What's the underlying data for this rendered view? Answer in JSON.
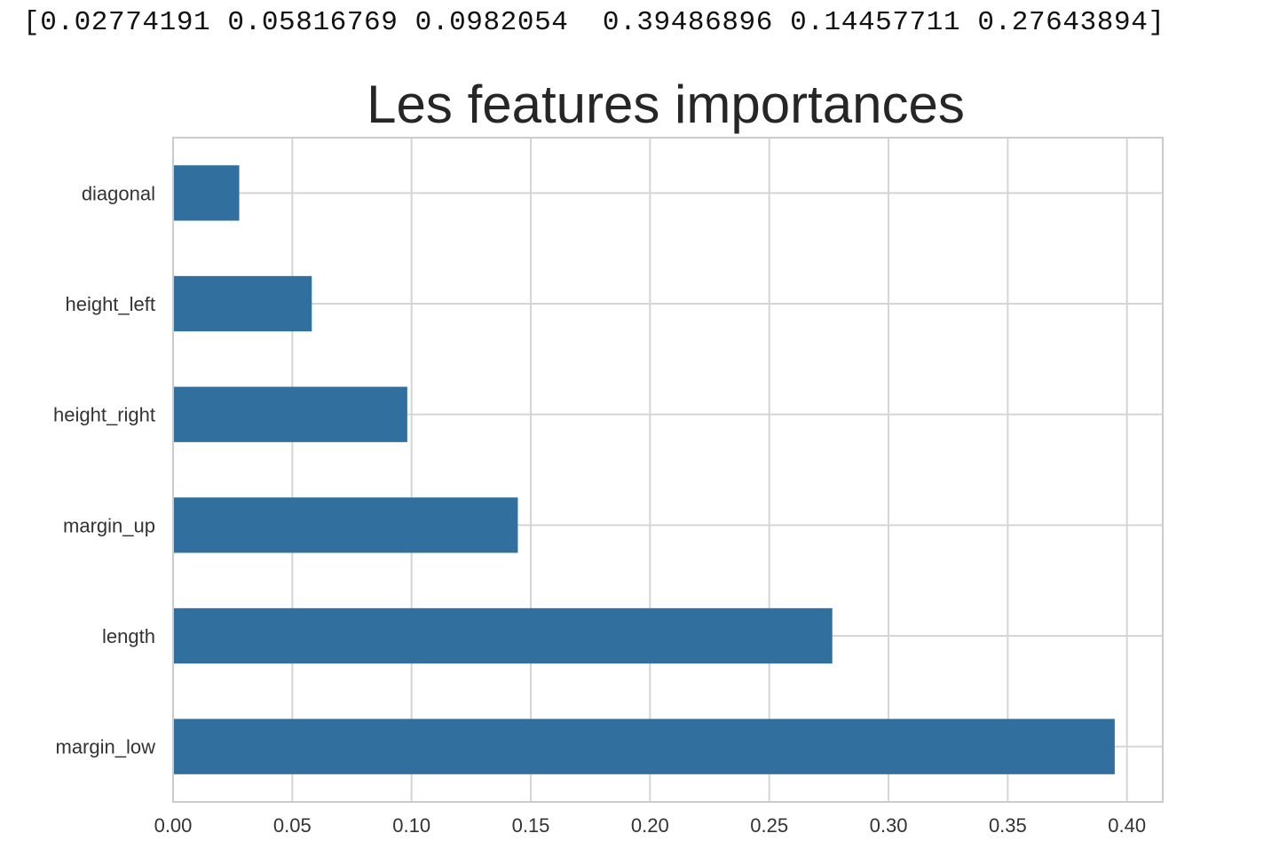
{
  "output": {
    "text": "[0.02774191 0.05816769 0.0982054  0.39486896 0.14457711 0.27643894]"
  },
  "chart_data": {
    "type": "bar",
    "orientation": "horizontal",
    "title": "Les features importances",
    "xlabel": "",
    "ylabel": "",
    "categories": [
      "diagonal",
      "height_left",
      "height_right",
      "margin_up",
      "length",
      "margin_low"
    ],
    "values": [
      0.02774191,
      0.05816769,
      0.0982054,
      0.14457711,
      0.27643894,
      0.39486896
    ],
    "xlim": [
      0.0,
      0.415
    ],
    "xticks": [
      0.0,
      0.05,
      0.1,
      0.15,
      0.2,
      0.25,
      0.3,
      0.35,
      0.4
    ],
    "xtick_labels": [
      "0.00",
      "0.05",
      "0.10",
      "0.15",
      "0.20",
      "0.25",
      "0.30",
      "0.35",
      "0.40"
    ],
    "grid": true,
    "legend": "none",
    "bar_color": "#31709e"
  }
}
